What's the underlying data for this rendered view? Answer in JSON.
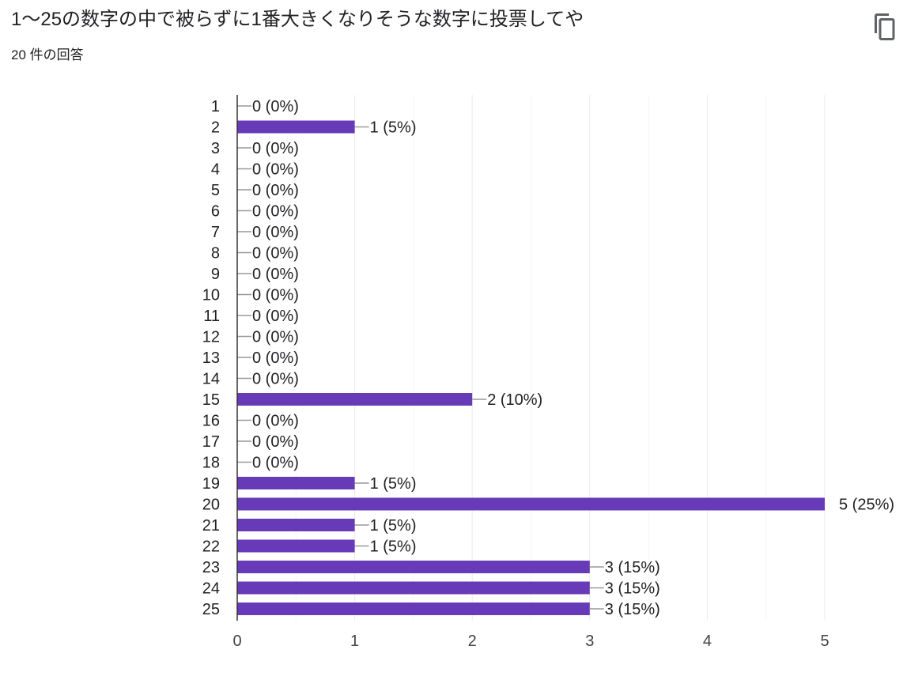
{
  "header": {
    "title": "1〜25の数字の中で被らずに1番大きくなりそうな数字に投票してや",
    "response_count": "20 件の回答"
  },
  "icons": {
    "copy": "copy-icon"
  },
  "colors": {
    "bar": "#673ab7",
    "grid": "#ebebeb",
    "axis": "#333333",
    "text": "#202124",
    "leader": "#999999"
  },
  "chart_data": {
    "type": "bar",
    "orientation": "horizontal",
    "categories": [
      "1",
      "2",
      "3",
      "4",
      "5",
      "6",
      "7",
      "8",
      "9",
      "10",
      "11",
      "12",
      "13",
      "14",
      "15",
      "16",
      "17",
      "18",
      "19",
      "20",
      "21",
      "22",
      "23",
      "24",
      "25"
    ],
    "values": [
      0,
      1,
      0,
      0,
      0,
      0,
      0,
      0,
      0,
      0,
      0,
      0,
      0,
      0,
      2,
      0,
      0,
      0,
      1,
      5,
      1,
      1,
      3,
      3,
      3
    ],
    "data_labels": [
      "0 (0%)",
      "1 (5%)",
      "0 (0%)",
      "0 (0%)",
      "0 (0%)",
      "0 (0%)",
      "0 (0%)",
      "0 (0%)",
      "0 (0%)",
      "0 (0%)",
      "0 (0%)",
      "0 (0%)",
      "0 (0%)",
      "0 (0%)",
      "2 (10%)",
      "0 (0%)",
      "0 (0%)",
      "0 (0%)",
      "1 (5%)",
      "5 (25%)",
      "1 (5%)",
      "1 (5%)",
      "3 (15%)",
      "3 (15%)",
      "3 (15%)"
    ],
    "xlim": [
      0,
      5
    ],
    "x_ticks": [
      "0",
      "1",
      "2",
      "3",
      "4",
      "5"
    ],
    "grid": true,
    "legend": false
  }
}
